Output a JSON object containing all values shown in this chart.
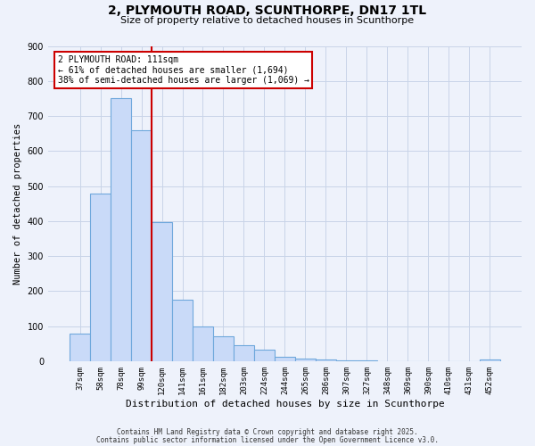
{
  "title": "2, PLYMOUTH ROAD, SCUNTHORPE, DN17 1TL",
  "subtitle": "Size of property relative to detached houses in Scunthorpe",
  "xlabel": "Distribution of detached houses by size in Scunthorpe",
  "ylabel": "Number of detached properties",
  "bar_labels": [
    "37sqm",
    "58sqm",
    "78sqm",
    "99sqm",
    "120sqm",
    "141sqm",
    "161sqm",
    "182sqm",
    "203sqm",
    "224sqm",
    "244sqm",
    "265sqm",
    "286sqm",
    "307sqm",
    "327sqm",
    "348sqm",
    "369sqm",
    "390sqm",
    "410sqm",
    "431sqm",
    "452sqm"
  ],
  "bar_values": [
    78,
    478,
    750,
    660,
    398,
    175,
    100,
    72,
    45,
    32,
    12,
    8,
    4,
    2,
    1,
    0,
    0,
    0,
    0,
    0,
    5
  ],
  "bar_color": "#c9daf8",
  "bar_edge_color": "#6fa8dc",
  "property_label": "2 PLYMOUTH ROAD: 111sqm",
  "annotation_line1": "← 61% of detached houses are smaller (1,694)",
  "annotation_line2": "38% of semi-detached houses are larger (1,069) →",
  "annotation_box_color": "#ffffff",
  "annotation_box_edge_color": "#cc0000",
  "ylim": [
    0,
    900
  ],
  "yticks": [
    0,
    100,
    200,
    300,
    400,
    500,
    600,
    700,
    800,
    900
  ],
  "grid_color": "#c8d4e8",
  "background_color": "#eef2fb",
  "footer_line1": "Contains HM Land Registry data © Crown copyright and database right 2025.",
  "footer_line2": "Contains public sector information licensed under the Open Government Licence v3.0."
}
